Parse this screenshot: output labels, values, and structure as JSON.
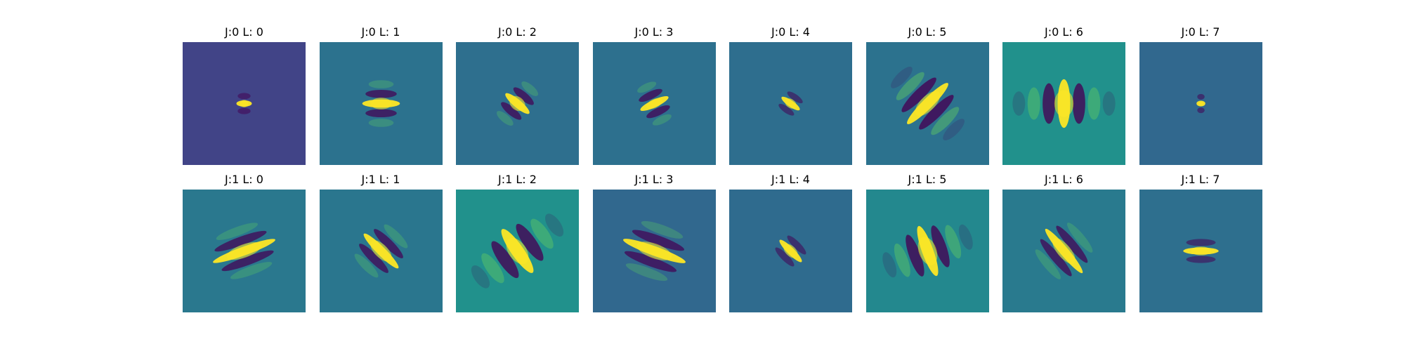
{
  "figure": {
    "rows": [
      {
        "panels": [
          {
            "title": "J:0 L: 0",
            "background": "#414487",
            "orientation_deg": 90,
            "sigma_major": 0.07,
            "sigma_minor": 0.05,
            "frequency": 3.6,
            "fringes": 1
          },
          {
            "title": "J:0 L: 1",
            "background": "#2c728e",
            "orientation_deg": 90,
            "sigma_major": 0.17,
            "sigma_minor": 0.08,
            "frequency": 2.8,
            "fringes": 2
          },
          {
            "title": "J:0 L: 2",
            "background": "#2e6f8e",
            "orientation_deg": -50,
            "sigma_major": 0.14,
            "sigma_minor": 0.09,
            "frequency": 2.8,
            "fringes": 2
          },
          {
            "title": "J:0 L: 3",
            "background": "#2d708e",
            "orientation_deg": 65,
            "sigma_major": 0.14,
            "sigma_minor": 0.06,
            "frequency": 3.0,
            "fringes": 2
          },
          {
            "title": "J:0 L: 4",
            "background": "#2e6e8e",
            "orientation_deg": -55,
            "sigma_major": 0.1,
            "sigma_minor": 0.06,
            "frequency": 3.6,
            "fringes": 1
          },
          {
            "title": "J:0 L: 5",
            "background": "#2c728e",
            "orientation_deg": 45,
            "sigma_major": 0.26,
            "sigma_minor": 0.1,
            "frequency": 2.2,
            "fringes": 3
          },
          {
            "title": "J:0 L: 6",
            "background": "#21918c",
            "orientation_deg": 0,
            "sigma_major": 0.22,
            "sigma_minor": 0.13,
            "frequency": 1.8,
            "fringes": 3
          },
          {
            "title": "J:0 L: 7",
            "background": "#31688e",
            "orientation_deg": 90,
            "sigma_major": 0.04,
            "sigma_minor": 0.025,
            "frequency": 4.0,
            "fringes": 1
          }
        ]
      },
      {
        "panels": [
          {
            "title": "J:1 L: 0",
            "background": "#2a788e",
            "orientation_deg": 70,
            "sigma_major": 0.3,
            "sigma_minor": 0.09,
            "frequency": 2.6,
            "fringes": 2
          },
          {
            "title": "J:1 L: 1",
            "background": "#2a768e",
            "orientation_deg": -45,
            "sigma_major": 0.22,
            "sigma_minor": 0.09,
            "frequency": 2.6,
            "fringes": 2
          },
          {
            "title": "J:1 L: 2",
            "background": "#21918c",
            "orientation_deg": -35,
            "sigma_major": 0.24,
            "sigma_minor": 0.12,
            "frequency": 1.8,
            "fringes": 3
          },
          {
            "title": "J:1 L: 3",
            "background": "#31688e",
            "orientation_deg": 110,
            "sigma_major": 0.3,
            "sigma_minor": 0.1,
            "frequency": 2.4,
            "fringes": 2
          },
          {
            "title": "J:1 L: 4",
            "background": "#2f6b8e",
            "orientation_deg": -45,
            "sigma_major": 0.14,
            "sigma_minor": 0.07,
            "frequency": 3.2,
            "fringes": 1
          },
          {
            "title": "J:1 L: 5",
            "background": "#23888e",
            "orientation_deg": -20,
            "sigma_major": 0.24,
            "sigma_minor": 0.12,
            "frequency": 2.0,
            "fringes": 3
          },
          {
            "title": "J:1 L: 6",
            "background": "#297a8e",
            "orientation_deg": -40,
            "sigma_major": 0.26,
            "sigma_minor": 0.09,
            "frequency": 2.6,
            "fringes": 2
          },
          {
            "title": "J:1 L: 7",
            "background": "#2e6f8e",
            "orientation_deg": 90,
            "sigma_major": 0.16,
            "sigma_minor": 0.06,
            "frequency": 3.2,
            "fringes": 1
          }
        ]
      }
    ],
    "colors": {
      "positive_peak": "#fde725",
      "positive_mid": "#5ec962",
      "negative_peak": "#440154",
      "negative_mid": "#3b528b"
    }
  }
}
